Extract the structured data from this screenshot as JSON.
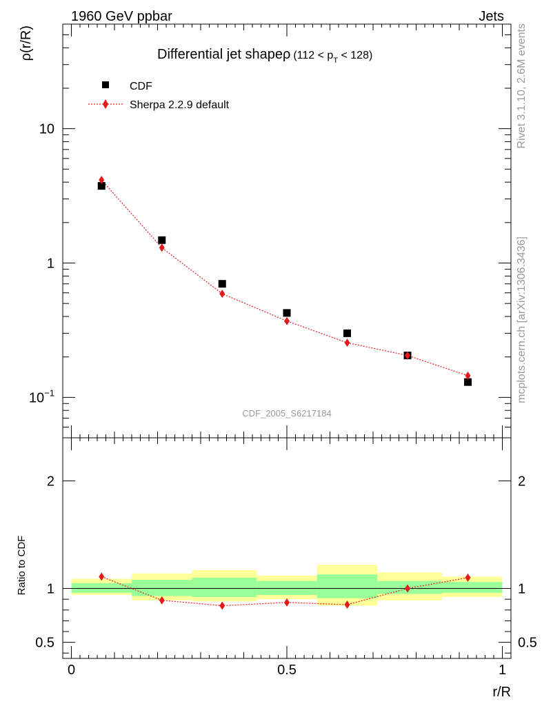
{
  "header": {
    "left": "1960 GeV ppbar",
    "right": "Jets"
  },
  "side_labels": {
    "rivet": "Rivet 3.1.10,  2.6M events",
    "mcplots": "mcplots.cern.ch [arXiv:1306.3436]"
  },
  "chart_data": [
    {
      "type": "scatter",
      "panel": "main",
      "title": "Differential jet shapeρ",
      "title_cut": "(112 < p",
      "title_cut_sub": "T",
      "title_cut_end": " < 128)",
      "ylabel": "ρ(r/R)",
      "yscale": "log",
      "xlim": [
        -0.02,
        1.02
      ],
      "ylim": [
        0.05,
        60
      ],
      "yticks_major": [
        0.1,
        1,
        10
      ],
      "ytick_labels": [
        "10−1",
        "1",
        "10"
      ],
      "watermark": "CDF_2005_S6217184",
      "legend_placement": "top-left",
      "series": [
        {
          "name": "CDF",
          "marker": "square",
          "color": "#000000",
          "x": [
            0.07,
            0.21,
            0.35,
            0.5,
            0.64,
            0.78,
            0.92
          ],
          "y": [
            3.75,
            1.48,
            0.7,
            0.425,
            0.3,
            0.205,
            0.13
          ]
        },
        {
          "name": "Sherpa 2.2.9 default",
          "marker": "diamond",
          "color": "#e31a1c",
          "line": "dotted",
          "x": [
            0.07,
            0.21,
            0.35,
            0.5,
            0.64,
            0.78,
            0.92
          ],
          "y": [
            4.15,
            1.3,
            0.59,
            0.37,
            0.255,
            0.205,
            0.145
          ]
        }
      ]
    },
    {
      "type": "line",
      "panel": "ratio",
      "ylabel": "Ratio to CDF",
      "xlabel": "r/R",
      "xlim": [
        -0.02,
        1.02
      ],
      "ylim": [
        0.35,
        2.4
      ],
      "yticks_major": [
        0.5,
        1,
        2
      ],
      "ytick_labels": [
        "0.5",
        "1",
        "2"
      ],
      "xticks_major": [
        0,
        0.5,
        1
      ],
      "xtick_labels": [
        "0",
        "0.5",
        "1"
      ],
      "bin_edges": [
        0,
        0.14,
        0.28,
        0.43,
        0.57,
        0.71,
        0.86,
        1.0
      ],
      "band_green": [
        [
          0.96,
          1.05
        ],
        [
          0.93,
          1.08
        ],
        [
          0.92,
          1.1
        ],
        [
          0.94,
          1.07
        ],
        [
          0.91,
          1.13
        ],
        [
          0.95,
          1.07
        ],
        [
          0.96,
          1.06
        ]
      ],
      "band_yellow": [
        [
          0.94,
          1.09
        ],
        [
          0.89,
          1.14
        ],
        [
          0.88,
          1.17
        ],
        [
          0.9,
          1.12
        ],
        [
          0.84,
          1.22
        ],
        [
          0.89,
          1.15
        ],
        [
          0.92,
          1.11
        ]
      ],
      "series": [
        {
          "name": "Sherpa 2.2.9 default",
          "marker": "diamond",
          "color": "#e31a1c",
          "x": [
            0.07,
            0.21,
            0.35,
            0.5,
            0.64,
            0.78,
            0.92
          ],
          "y": [
            1.11,
            0.89,
            0.84,
            0.87,
            0.85,
            1.0,
            1.1
          ],
          "yerr": [
            0.015,
            0.015,
            0.015,
            0.02,
            0.02,
            0.025,
            0.03
          ]
        }
      ]
    }
  ],
  "colors": {
    "band_green": "#99ff99",
    "band_yellow": "#ffff99",
    "data": "#000000",
    "mc": "#e31a1c"
  }
}
